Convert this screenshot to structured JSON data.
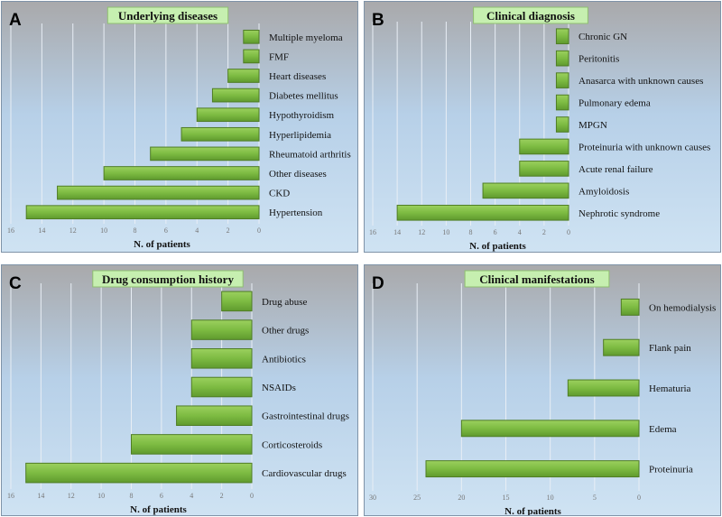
{
  "chart_data": [
    {
      "panel": "A",
      "type": "bar",
      "orientation": "horizontal",
      "title": "Underlying diseases",
      "xlabel": "N. of patients",
      "xlim": [
        0,
        16
      ],
      "ticks": [
        16,
        14,
        12,
        10,
        8,
        6,
        4,
        2,
        0
      ],
      "categories": [
        "Multiple myeloma",
        "FMF",
        "Heart diseases",
        "Diabetes mellitus",
        "Hypothyroidism",
        "Hyperlipidemia",
        "Rheumatoid arthritis",
        "Other diseases",
        "CKD",
        "Hypertension"
      ],
      "values": [
        1,
        1,
        2,
        3,
        4,
        5,
        7,
        10,
        13,
        15
      ]
    },
    {
      "panel": "B",
      "type": "bar",
      "orientation": "horizontal",
      "title": "Clinical diagnosis",
      "xlabel": "N. of patients",
      "xlim": [
        0,
        16
      ],
      "ticks": [
        16,
        14,
        12,
        10,
        8,
        6,
        4,
        2,
        0
      ],
      "categories": [
        "Chronic GN",
        "Peritonitis",
        "Anasarca with unknown causes",
        "Pulmonary edema",
        "MPGN",
        "Proteinuria with unknown causes",
        "Acute renal failure",
        "Amyloidosis",
        "Nephrotic syndrome"
      ],
      "values": [
        1,
        1,
        1,
        1,
        1,
        4,
        4,
        7,
        14
      ]
    },
    {
      "panel": "C",
      "type": "bar",
      "orientation": "horizontal",
      "title": "Drug consumption history",
      "xlabel": "N. of patients",
      "xlim": [
        0,
        16
      ],
      "ticks": [
        16,
        14,
        12,
        10,
        8,
        6,
        4,
        2,
        0
      ],
      "categories": [
        "Drug abuse",
        "Other drugs",
        "Antibiotics",
        "NSAIDs",
        "Gastrointestinal drugs",
        "Corticosteroids",
        "Cardiovascular drugs"
      ],
      "values": [
        2,
        4,
        4,
        4,
        5,
        8,
        15
      ]
    },
    {
      "panel": "D",
      "type": "bar",
      "orientation": "horizontal",
      "title": "Clinical manifestations",
      "xlabel": "N. of patients",
      "xlim": [
        0,
        30
      ],
      "ticks": [
        30,
        25,
        20,
        15,
        10,
        5,
        0
      ],
      "categories": [
        "On hemodialysis",
        "Flank pain",
        "Hematuria",
        "Edema",
        "Proteinuria"
      ],
      "values": [
        2,
        4,
        8,
        20,
        24
      ]
    }
  ],
  "colors": {
    "bar": "#7dbb42",
    "bar_edge": "#4f7d25",
    "title_bg": "#c6efb0",
    "bg_top": "#a9a9ab",
    "bg_bottom": "#cfe3f3"
  }
}
